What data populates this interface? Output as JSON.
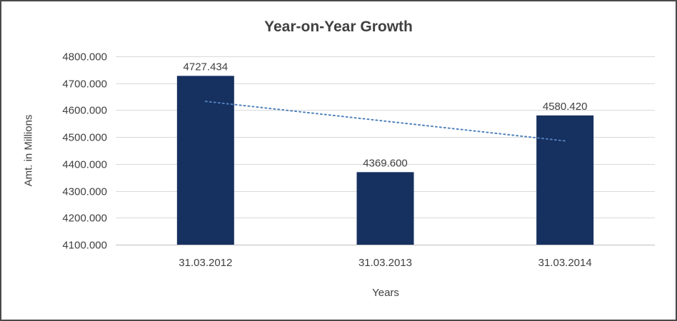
{
  "chart_data": {
    "type": "bar",
    "title": "Year-on-Year Growth",
    "xlabel": "Years",
    "ylabel": "Amt. in Millions",
    "categories": [
      "31.03.2012",
      "31.03.2013",
      "31.03.2014"
    ],
    "values": [
      4727.434,
      4369.6,
      4580.42
    ],
    "data_labels": [
      "4727.434",
      "4369.600",
      "4580.420"
    ],
    "ylim": [
      4100,
      4800
    ],
    "ytick_step": 100,
    "ytick_labels": [
      "4100.000",
      "4200.000",
      "4300.000",
      "4400.000",
      "4500.000",
      "4600.000",
      "4700.000",
      "4800.000"
    ],
    "grid": true,
    "legend": "none",
    "bar_color": "#16305F",
    "gridline_color": "#d9d9d9",
    "axis_line_color": "#bfbfbf",
    "label_color": "#404040",
    "trendline": {
      "kind": "linear",
      "color": "#4f81bd",
      "style": "dotted"
    }
  }
}
